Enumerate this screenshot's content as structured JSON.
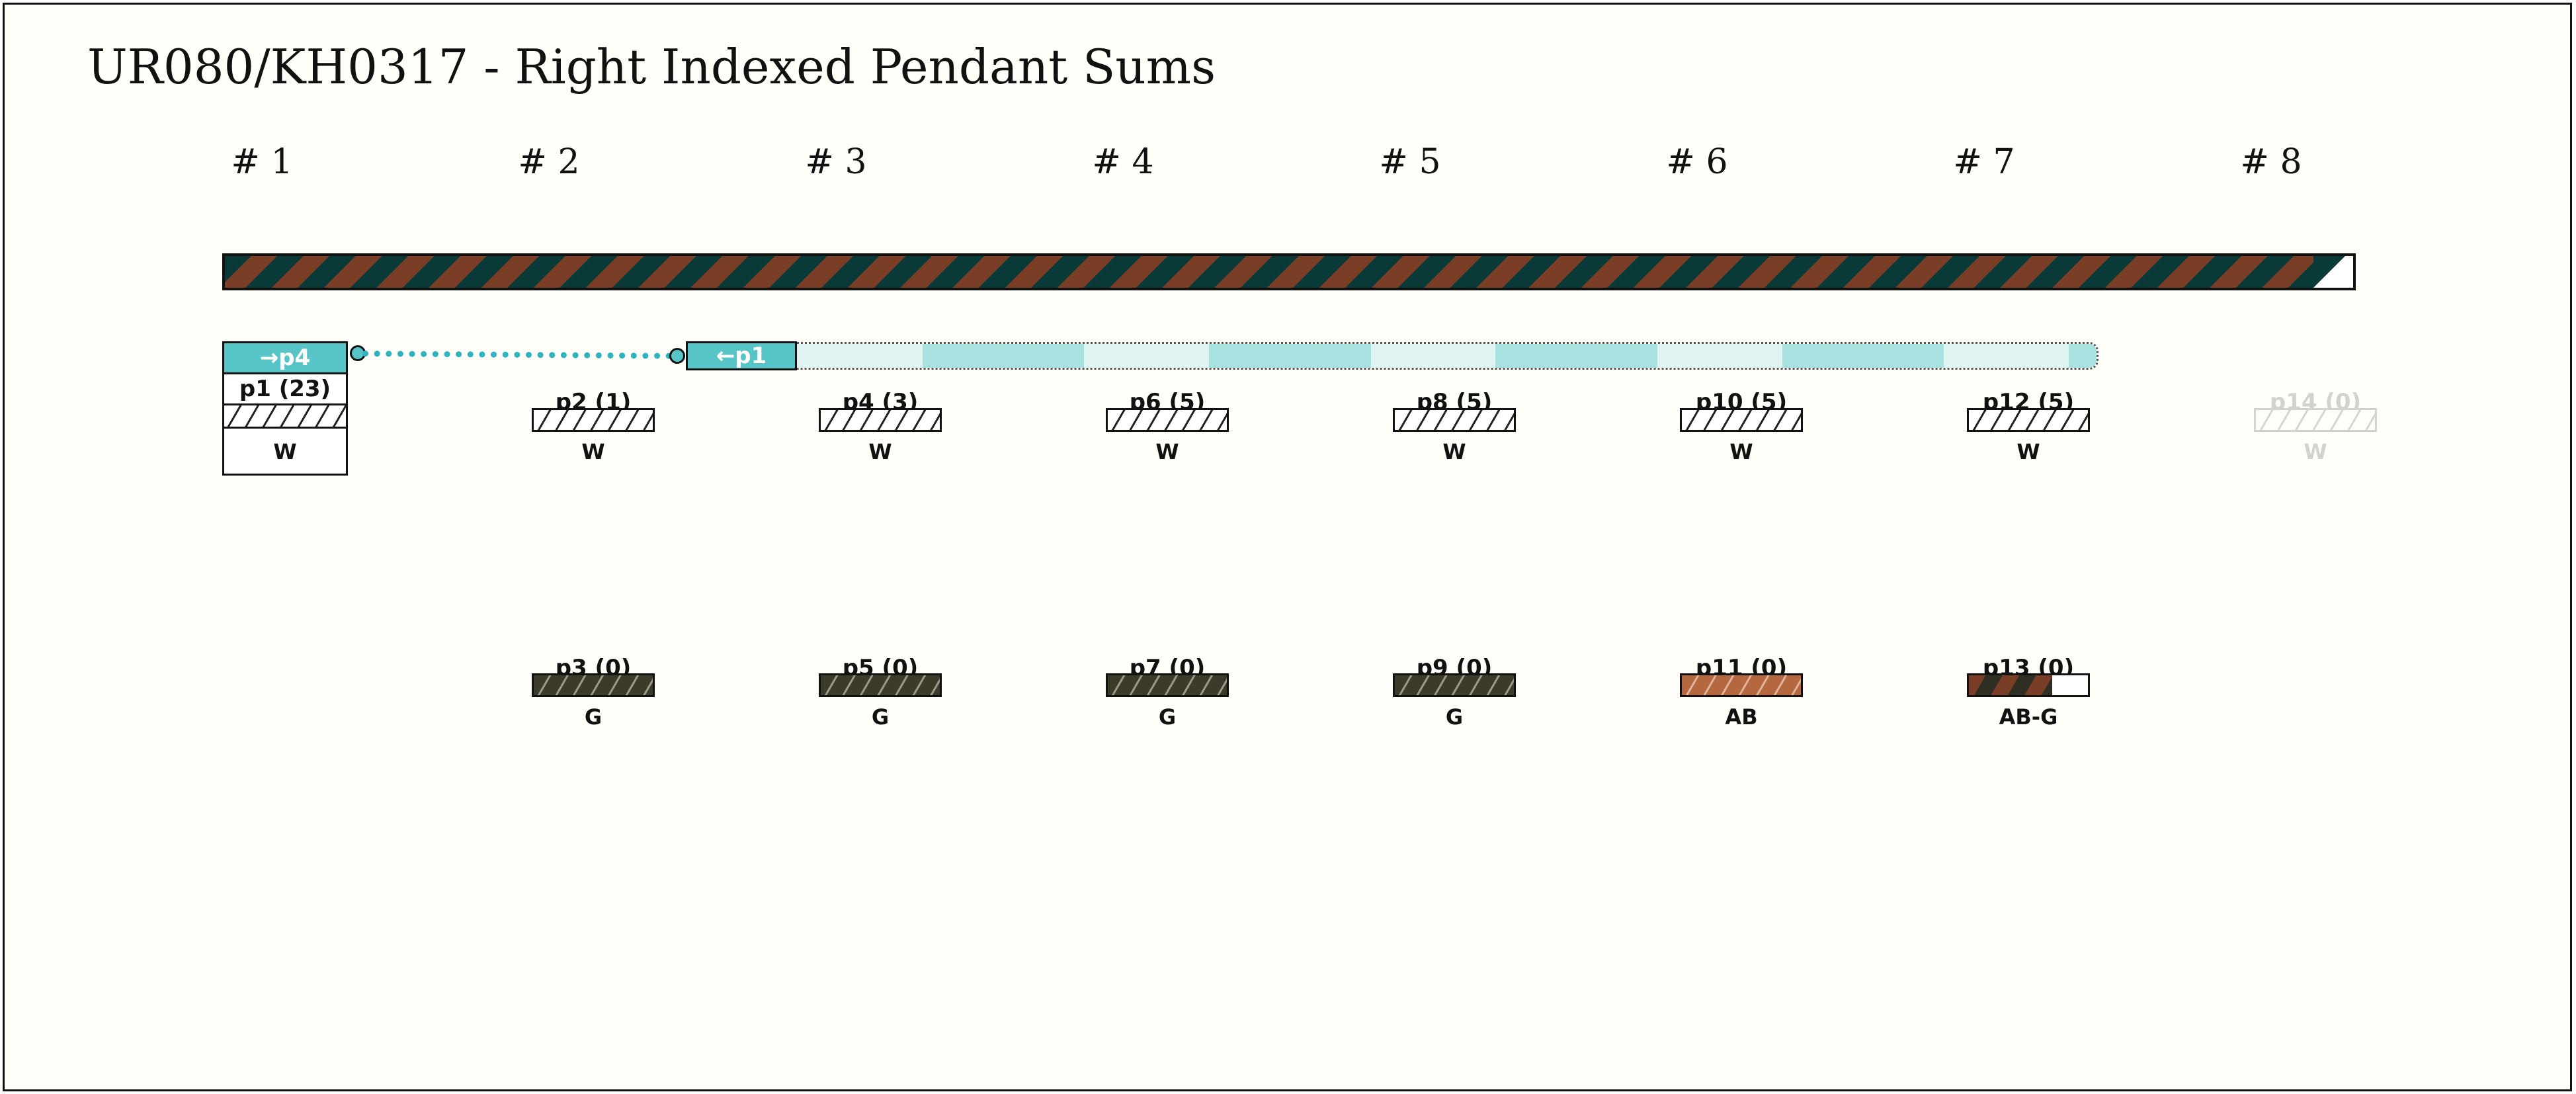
{
  "title": "UR080/KH0317 - Right Indexed Pendant Sums",
  "columns": [
    "# 1",
    "# 2",
    "# 3",
    "# 4",
    "# 5",
    "# 6",
    "# 7",
    "# 8"
  ],
  "colors": {
    "teal": "#57c4c8",
    "light_teal": "#a8e2e0",
    "pale_teal": "#dff3f0",
    "dark_green": "#0a3a37",
    "brown": "#7a3e27",
    "olive": "#3c3a28",
    "ab": "#b5673f",
    "background": "#fffef8"
  },
  "link": {
    "from_label": "→p4",
    "to_label": "←p1"
  },
  "pendants": [
    {
      "id": "p1",
      "label": "p1 (23)",
      "color": "W",
      "style": "w",
      "column": 1,
      "row": "top",
      "faded": false
    },
    {
      "id": "p2",
      "label": "p2 (1)",
      "color": "W",
      "style": "w",
      "column": 2,
      "row": "top",
      "faded": false
    },
    {
      "id": "p3",
      "label": "p3 (0)",
      "color": "G",
      "style": "g",
      "column": 2,
      "row": "bottom",
      "faded": false
    },
    {
      "id": "p4",
      "label": "p4 (3)",
      "color": "W",
      "style": "w",
      "column": 3,
      "row": "top",
      "faded": false
    },
    {
      "id": "p5",
      "label": "p5 (0)",
      "color": "G",
      "style": "g",
      "column": 3,
      "row": "bottom",
      "faded": false
    },
    {
      "id": "p6",
      "label": "p6 (5)",
      "color": "W",
      "style": "w",
      "column": 4,
      "row": "top",
      "faded": false
    },
    {
      "id": "p7",
      "label": "p7 (0)",
      "color": "G",
      "style": "g",
      "column": 4,
      "row": "bottom",
      "faded": false
    },
    {
      "id": "p8",
      "label": "p8 (5)",
      "color": "W",
      "style": "w",
      "column": 5,
      "row": "top",
      "faded": false
    },
    {
      "id": "p9",
      "label": "p9 (0)",
      "color": "G",
      "style": "g",
      "column": 5,
      "row": "bottom",
      "faded": false
    },
    {
      "id": "p10",
      "label": "p10 (5)",
      "color": "W",
      "style": "w",
      "column": 6,
      "row": "top",
      "faded": false
    },
    {
      "id": "p11",
      "label": "p11 (0)",
      "color": "AB",
      "style": "ab",
      "column": 6,
      "row": "bottom",
      "faded": false
    },
    {
      "id": "p12",
      "label": "p12 (5)",
      "color": "W",
      "style": "w",
      "column": 7,
      "row": "top",
      "faded": false
    },
    {
      "id": "p13",
      "label": "p13 (0)",
      "color": "AB-G",
      "style": "abg",
      "column": 7,
      "row": "bottom",
      "faded": false
    },
    {
      "id": "p14",
      "label": "p14 (0)",
      "color": "W",
      "style": "w",
      "column": 8,
      "row": "top",
      "faded": true
    }
  ]
}
